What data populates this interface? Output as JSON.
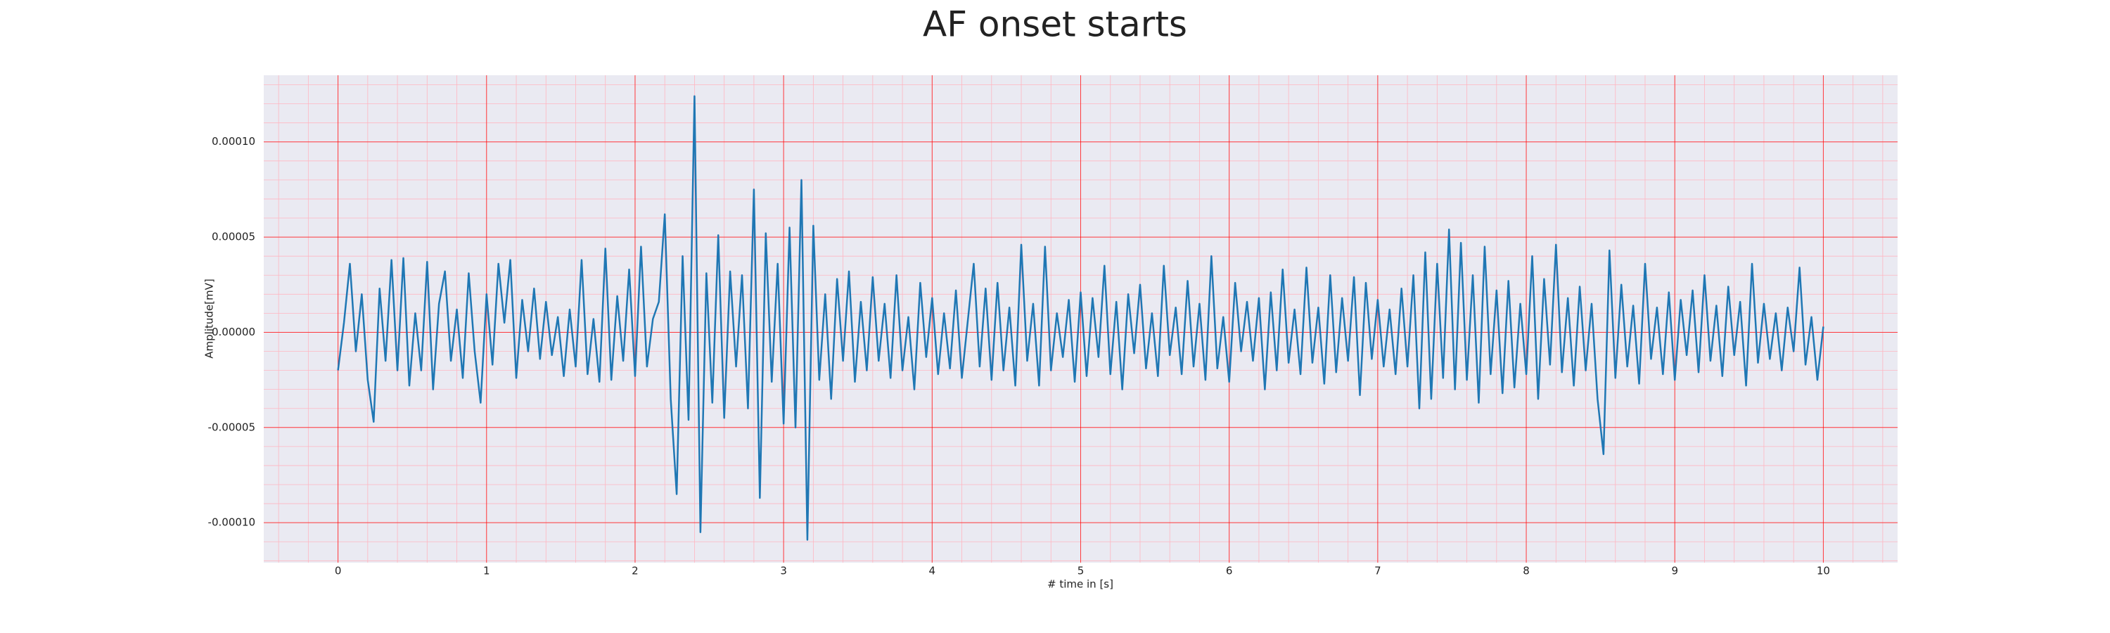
{
  "chart_data": {
    "type": "line",
    "title": "AF onset starts",
    "x_label": "# time in [s]",
    "y_label": "Amplitude[mV]",
    "color": "#1f77b4",
    "background": "#eaeaf2",
    "grid_color": "#ff0000",
    "minor_grid_color": "#ffb6c1",
    "grid": true,
    "minor_grid": true,
    "xlim": [
      -0.5,
      10.5
    ],
    "xticks": [
      0,
      1,
      2,
      3,
      4,
      5,
      6,
      7,
      8,
      9,
      10
    ],
    "ylim": [
      -0.000121,
      0.000135
    ],
    "yticks": [
      {
        "value": -0.0001,
        "label": "-0.00010"
      },
      {
        "value": -5e-05,
        "label": "-0.00005"
      },
      {
        "value": 0,
        "label": "0.00000"
      },
      {
        "value": 5e-05,
        "label": "0.00005"
      },
      {
        "value": 0.0001,
        "label": "0.00010"
      }
    ],
    "x": [
      0,
      0.04,
      0.08,
      0.12,
      0.16,
      0.2,
      0.24,
      0.28,
      0.32,
      0.36,
      0.4,
      0.44,
      0.48,
      0.52,
      0.56,
      0.6,
      0.64,
      0.68,
      0.72,
      0.76,
      0.8,
      0.84,
      0.88,
      0.92,
      0.96,
      1,
      1.04,
      1.08,
      1.12,
      1.16,
      1.2,
      1.24,
      1.28,
      1.32,
      1.36,
      1.4,
      1.44,
      1.48,
      1.52,
      1.56,
      1.6,
      1.64,
      1.68,
      1.72,
      1.76,
      1.8,
      1.84,
      1.88,
      1.92,
      1.96,
      2,
      2.04,
      2.08,
      2.12,
      2.16,
      2.2,
      2.24,
      2.28,
      2.32,
      2.36,
      2.4,
      2.44,
      2.48,
      2.52,
      2.56,
      2.6,
      2.64,
      2.68,
      2.72,
      2.76,
      2.8,
      2.84,
      2.88,
      2.92,
      2.96,
      3,
      3.04,
      3.08,
      3.12,
      3.16,
      3.2,
      3.24,
      3.28,
      3.32,
      3.36,
      3.4,
      3.44,
      3.48,
      3.52,
      3.56,
      3.6,
      3.64,
      3.68,
      3.72,
      3.76,
      3.8,
      3.84,
      3.88,
      3.92,
      3.96,
      4,
      4.04,
      4.08,
      4.12,
      4.16,
      4.2,
      4.24,
      4.28,
      4.32,
      4.36,
      4.4,
      4.44,
      4.48,
      4.52,
      4.56,
      4.6,
      4.64,
      4.68,
      4.72,
      4.76,
      4.8,
      4.84,
      4.88,
      4.92,
      4.96,
      5,
      5.04,
      5.08,
      5.12,
      5.16,
      5.2,
      5.24,
      5.28,
      5.32,
      5.36,
      5.4,
      5.44,
      5.48,
      5.52,
      5.56,
      5.6,
      5.64,
      5.68,
      5.72,
      5.76,
      5.8,
      5.84,
      5.88,
      5.92,
      5.96,
      6,
      6.04,
      6.08,
      6.12,
      6.16,
      6.2,
      6.24,
      6.28,
      6.32,
      6.36,
      6.4,
      6.44,
      6.48,
      6.52,
      6.56,
      6.6,
      6.64,
      6.68,
      6.72,
      6.76,
      6.8,
      6.84,
      6.88,
      6.92,
      6.96,
      7,
      7.04,
      7.08,
      7.12,
      7.16,
      7.2,
      7.24,
      7.28,
      7.32,
      7.36,
      7.4,
      7.44,
      7.48,
      7.52,
      7.56,
      7.6,
      7.64,
      7.68,
      7.72,
      7.76,
      7.8,
      7.84,
      7.88,
      7.92,
      7.96,
      8,
      8.04,
      8.08,
      8.12,
      8.16,
      8.2,
      8.24,
      8.28,
      8.32,
      8.36,
      8.4,
      8.44,
      8.48,
      8.52,
      8.56,
      8.6,
      8.64,
      8.68,
      8.72,
      8.76,
      8.8,
      8.84,
      8.88,
      8.92,
      8.96,
      9,
      9.04,
      9.08,
      9.12,
      9.16,
      9.2,
      9.24,
      9.28,
      9.32,
      9.36,
      9.4,
      9.44,
      9.48,
      9.52,
      9.56,
      9.6,
      9.64,
      9.68,
      9.72,
      9.76,
      9.8,
      9.84,
      9.88,
      9.92,
      9.96,
      10
    ],
    "values": [
      -2e-05,
      5e-06,
      3.6e-05,
      -1e-05,
      2e-05,
      -2.5e-05,
      -4.7e-05,
      2.3e-05,
      -1.5e-05,
      3.8e-05,
      -2e-05,
      3.9e-05,
      -2.8e-05,
      1e-05,
      -2e-05,
      3.7e-05,
      -3e-05,
      1.5e-05,
      3.2e-05,
      -1.5e-05,
      1.2e-05,
      -2.4e-05,
      3.1e-05,
      -1e-05,
      -3.7e-05,
      2e-05,
      -1.7e-05,
      3.6e-05,
      5e-06,
      3.8e-05,
      -2.4e-05,
      1.7e-05,
      -1e-05,
      2.3e-05,
      -1.4e-05,
      1.6e-05,
      -1.2e-05,
      8e-06,
      -2.3e-05,
      1.2e-05,
      -1.8e-05,
      3.8e-05,
      -2.2e-05,
      7e-06,
      -2.6e-05,
      4.4e-05,
      -2.5e-05,
      1.9e-05,
      -1.5e-05,
      3.3e-05,
      -2.3e-05,
      4.5e-05,
      -1.8e-05,
      7e-06,
      1.6e-05,
      6.2e-05,
      -3.5e-05,
      -8.5e-05,
      4e-05,
      -4.6e-05,
      0.000124,
      -0.000105,
      3.1e-05,
      -3.7e-05,
      5.1e-05,
      -4.5e-05,
      3.2e-05,
      -1.8e-05,
      3e-05,
      -4e-05,
      7.5e-05,
      -8.7e-05,
      5.2e-05,
      -2.6e-05,
      3.6e-05,
      -4.8e-05,
      5.5e-05,
      -5e-05,
      8e-05,
      -0.000109,
      5.6e-05,
      -2.5e-05,
      2e-05,
      -3.5e-05,
      2.8e-05,
      -1.5e-05,
      3.2e-05,
      -2.6e-05,
      1.6e-05,
      -2e-05,
      2.9e-05,
      -1.5e-05,
      1.5e-05,
      -2.4e-05,
      3e-05,
      -2e-05,
      8e-06,
      -3e-05,
      2.6e-05,
      -1.3e-05,
      1.8e-05,
      -2.2e-05,
      1e-05,
      -1.9e-05,
      2.2e-05,
      -2.4e-05,
      6e-06,
      3.6e-05,
      -1.8e-05,
      2.3e-05,
      -2.5e-05,
      2.6e-05,
      -2e-05,
      1.3e-05,
      -2.8e-05,
      4.6e-05,
      -1.5e-05,
      1.5e-05,
      -2.8e-05,
      4.5e-05,
      -2e-05,
      1e-05,
      -1.3e-05,
      1.7e-05,
      -2.6e-05,
      2.1e-05,
      -2.3e-05,
      1.8e-05,
      -1.3e-05,
      3.5e-05,
      -2.2e-05,
      1.6e-05,
      -3e-05,
      2e-05,
      -1.1e-05,
      2.5e-05,
      -1.9e-05,
      1e-05,
      -2.3e-05,
      3.5e-05,
      -1.2e-05,
      1.3e-05,
      -2.2e-05,
      2.7e-05,
      -1.8e-05,
      1.5e-05,
      -2.5e-05,
      4e-05,
      -1.9e-05,
      8e-06,
      -2.6e-05,
      2.6e-05,
      -1e-05,
      1.6e-05,
      -1.5e-05,
      1.8e-05,
      -3e-05,
      2.1e-05,
      -2e-05,
      3.3e-05,
      -1.6e-05,
      1.2e-05,
      -2.2e-05,
      3.4e-05,
      -1.6e-05,
      1.3e-05,
      -2.7e-05,
      3e-05,
      -2.1e-05,
      1.8e-05,
      -1.5e-05,
      2.9e-05,
      -3.3e-05,
      2.6e-05,
      -1.4e-05,
      1.7e-05,
      -1.8e-05,
      1.2e-05,
      -2.2e-05,
      2.3e-05,
      -1.8e-05,
      3e-05,
      -4e-05,
      4.2e-05,
      -3.5e-05,
      3.6e-05,
      -2.4e-05,
      5.4e-05,
      -3e-05,
      4.7e-05,
      -2.5e-05,
      3e-05,
      -3.7e-05,
      4.5e-05,
      -2.2e-05,
      2.2e-05,
      -3.2e-05,
      2.7e-05,
      -2.9e-05,
      1.5e-05,
      -2.2e-05,
      4e-05,
      -3.5e-05,
      2.8e-05,
      -1.7e-05,
      4.6e-05,
      -2.1e-05,
      1.8e-05,
      -2.8e-05,
      2.4e-05,
      -2e-05,
      1.5e-05,
      -3.5e-05,
      -6.4e-05,
      4.3e-05,
      -2.4e-05,
      2.5e-05,
      -1.8e-05,
      1.4e-05,
      -2.7e-05,
      3.6e-05,
      -1.4e-05,
      1.3e-05,
      -2.2e-05,
      2.1e-05,
      -2.5e-05,
      1.7e-05,
      -1.2e-05,
      2.2e-05,
      -2.1e-05,
      3e-05,
      -1.5e-05,
      1.4e-05,
      -2.3e-05,
      2.4e-05,
      -1.2e-05,
      1.6e-05,
      -2.8e-05,
      3.6e-05,
      -1.6e-05,
      1.5e-05,
      -1.4e-05,
      1e-05,
      -2e-05,
      1.3e-05,
      -1e-05,
      3.4e-05,
      -1.7e-05,
      8e-06,
      -2.5e-05,
      3e-06
    ]
  }
}
